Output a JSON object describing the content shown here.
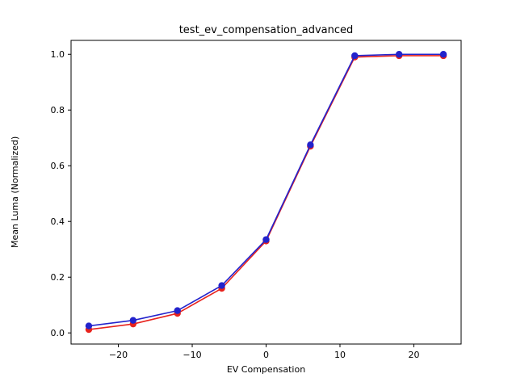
{
  "chart_data": {
    "type": "line",
    "title": "test_ev_compensation_advanced",
    "xlabel": "EV Compensation",
    "ylabel": "Mean Luma (Normalized)",
    "x": [
      -24,
      -18,
      -12,
      -6,
      0,
      6,
      12,
      18,
      24
    ],
    "series": [
      {
        "name": "red-series",
        "color": "#e8231d",
        "marker": "o",
        "values": [
          0.012,
          0.032,
          0.07,
          0.16,
          0.33,
          0.67,
          0.99,
          0.995,
          0.995
        ]
      },
      {
        "name": "blue-series",
        "color": "#2323cc",
        "marker": "o",
        "values": [
          0.025,
          0.045,
          0.08,
          0.17,
          0.335,
          0.675,
          0.995,
          1.0,
          1.0
        ]
      }
    ],
    "xlim": [
      -26.4,
      26.4
    ],
    "ylim": [
      -0.04,
      1.05
    ],
    "xtick_values": [
      -20,
      -10,
      0,
      10,
      20
    ],
    "xtick_labels": [
      "−20",
      "−10",
      "0",
      "10",
      "20"
    ],
    "ytick_values": [
      0.0,
      0.2,
      0.4,
      0.6,
      0.8,
      1.0
    ],
    "ytick_labels": [
      "0.0",
      "0.2",
      "0.4",
      "0.6",
      "0.8",
      "1.0"
    ],
    "grid": false,
    "legend": "none",
    "axes_color": "#000000",
    "background_color": "#ffffff"
  }
}
